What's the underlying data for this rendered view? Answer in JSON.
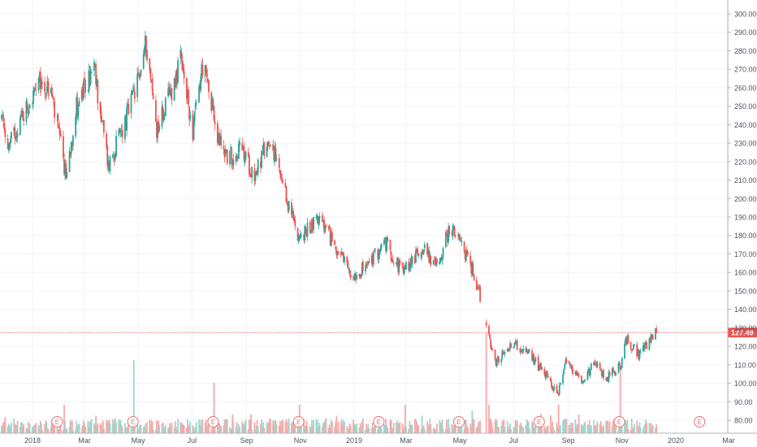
{
  "chart_data": {
    "type": "candlestick",
    "title": "",
    "xlabel": "",
    "ylabel": "",
    "ylim": [
      75,
      305
    ],
    "grid": true,
    "y_ticks": [
      "80.00",
      "90.00",
      "100.00",
      "110.00",
      "120.00",
      "130.00",
      "140.00",
      "150.00",
      "160.00",
      "170.00",
      "180.00",
      "190.00",
      "200.00",
      "210.00",
      "220.00",
      "230.00",
      "240.00",
      "250.00",
      "260.00",
      "270.00",
      "280.00",
      "290.00",
      "300.00"
    ],
    "x_ticks": [
      {
        "label": "2018",
        "date": "2018-01-01"
      },
      {
        "label": "Mar",
        "date": "2018-03-01"
      },
      {
        "label": "May",
        "date": "2018-05-01"
      },
      {
        "label": "Jul",
        "date": "2018-07-01"
      },
      {
        "label": "Sep",
        "date": "2018-09-01"
      },
      {
        "label": "Nov",
        "date": "2018-11-01"
      },
      {
        "label": "2019",
        "date": "2019-01-01"
      },
      {
        "label": "Mar",
        "date": "2019-03-01"
      },
      {
        "label": "May",
        "date": "2019-05-01"
      },
      {
        "label": "Jul",
        "date": "2019-07-01"
      },
      {
        "label": "Sep",
        "date": "2019-09-01"
      },
      {
        "label": "Nov",
        "date": "2019-11-01"
      },
      {
        "label": "2020",
        "date": "2020-01-01"
      },
      {
        "label": "Mar",
        "date": "2020-03-01"
      }
    ],
    "price_anchors": [
      [
        "2017-11-20",
        253
      ],
      [
        "2017-12-05",
        228
      ],
      [
        "2017-12-20",
        245
      ],
      [
        "2018-01-10",
        262
      ],
      [
        "2018-01-22",
        258
      ],
      [
        "2018-02-08",
        212
      ],
      [
        "2018-02-20",
        250
      ],
      [
        "2018-03-12",
        270
      ],
      [
        "2018-03-28",
        218
      ],
      [
        "2018-04-15",
        240
      ],
      [
        "2018-04-30",
        262
      ],
      [
        "2018-05-10",
        285
      ],
      [
        "2018-05-22",
        238
      ],
      [
        "2018-06-05",
        255
      ],
      [
        "2018-06-18",
        274
      ],
      [
        "2018-07-02",
        237
      ],
      [
        "2018-07-13",
        272
      ],
      [
        "2018-07-25",
        250
      ],
      [
        "2018-07-27",
        235
      ],
      [
        "2018-08-12",
        222
      ],
      [
        "2018-08-25",
        227
      ],
      [
        "2018-09-10",
        213
      ],
      [
        "2018-09-28",
        233
      ],
      [
        "2018-10-12",
        205
      ],
      [
        "2018-11-01",
        178
      ],
      [
        "2018-11-20",
        190
      ],
      [
        "2018-12-10",
        175
      ],
      [
        "2018-12-28",
        158
      ],
      [
        "2019-01-15",
        163
      ],
      [
        "2019-02-05",
        176
      ],
      [
        "2019-02-25",
        160
      ],
      [
        "2019-03-20",
        174
      ],
      [
        "2019-04-05",
        163
      ],
      [
        "2019-04-20",
        185
      ],
      [
        "2019-05-10",
        168
      ],
      [
        "2019-05-22",
        152
      ],
      [
        "2019-05-31",
        130
      ],
      [
        "2019-06-10",
        110
      ],
      [
        "2019-06-28",
        122
      ],
      [
        "2019-07-15",
        117
      ],
      [
        "2019-08-05",
        106
      ],
      [
        "2019-08-20",
        93
      ],
      [
        "2019-08-28",
        112
      ],
      [
        "2019-09-15",
        102
      ],
      [
        "2019-10-01",
        110
      ],
      [
        "2019-10-15",
        103
      ],
      [
        "2019-10-31",
        110
      ],
      [
        "2019-11-06",
        124
      ],
      [
        "2019-11-20",
        115
      ],
      [
        "2019-12-10",
        127.49
      ]
    ],
    "gap": {
      "from": "2019-05-24",
      "to": "2019-05-31"
    },
    "current_price": "127.49",
    "earnings_markers": [
      "2018-01-29",
      "2018-04-25",
      "2018-07-25",
      "2018-10-30",
      "2019-01-29",
      "2019-04-30",
      "2019-07-30",
      "2019-10-29",
      "2020-01-28"
    ],
    "earnings_label": "E",
    "colors": {
      "up": "#26a69a",
      "down": "#ef5350",
      "vol_up": "#9fd7cf",
      "vol_down": "#f7a9a7",
      "price_line": "#ef5350",
      "grid": "#f0f3fa",
      "axis_text": "#4c525e"
    }
  }
}
